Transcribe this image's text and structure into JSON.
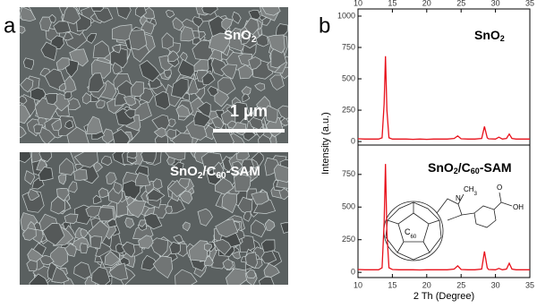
{
  "panel_a": {
    "label": "a",
    "scale_bar": "1 μm",
    "top_label": [
      "SnO",
      "2"
    ],
    "bottom_label": [
      "SnO",
      "2",
      "/C",
      "60",
      "-SAM"
    ]
  },
  "panel_b_label": "b",
  "ylabel": "Intensity (a.u.)",
  "xlabel": "2 Th (Degree)",
  "molecule": {
    "n": "N",
    "ch3": [
      "CH",
      "3"
    ],
    "o": "O",
    "oh": "OH",
    "c60": [
      "C",
      "60"
    ]
  },
  "chart_data": [
    {
      "type": "line",
      "label": [
        "SnO",
        "2"
      ],
      "color": "#e8101a",
      "x": [
        10,
        11,
        12,
        13,
        13.5,
        13.8,
        14,
        14.2,
        14.5,
        15,
        16,
        17,
        18,
        19,
        20,
        21,
        22,
        23,
        24,
        24.5,
        25,
        26,
        27,
        28,
        28.4,
        28.8,
        29,
        30,
        30.5,
        31,
        31.6,
        32,
        32.4,
        33,
        34,
        35
      ],
      "values": [
        22,
        20,
        20,
        20,
        30,
        300,
        680,
        250,
        30,
        20,
        20,
        20,
        18,
        20,
        18,
        20,
        20,
        20,
        25,
        45,
        22,
        20,
        20,
        25,
        120,
        30,
        22,
        20,
        35,
        20,
        25,
        60,
        25,
        20,
        20,
        20
      ],
      "xlim": [
        10,
        35
      ],
      "xticks": [
        10,
        15,
        20,
        25,
        30,
        35
      ],
      "ylim": [
        -28,
        1057
      ],
      "yticks": [
        0,
        250,
        500,
        750,
        1000
      ]
    },
    {
      "type": "line",
      "label": [
        "SnO",
        "2",
        "/C",
        "60",
        "-SAM"
      ],
      "color": "#e8101a",
      "x": [
        10,
        11,
        12,
        13,
        13.5,
        13.8,
        14,
        14.2,
        14.5,
        15,
        16,
        17,
        18,
        19,
        20,
        21,
        22,
        23,
        24,
        24.5,
        25,
        26,
        27,
        28,
        28.4,
        28.8,
        29,
        30,
        30.5,
        31,
        31.6,
        32,
        32.4,
        33,
        34,
        35
      ],
      "values": [
        22,
        20,
        20,
        20,
        35,
        380,
        830,
        300,
        35,
        22,
        20,
        20,
        20,
        18,
        20,
        20,
        20,
        20,
        25,
        50,
        22,
        20,
        20,
        25,
        160,
        35,
        22,
        20,
        30,
        20,
        25,
        70,
        25,
        20,
        20,
        20
      ],
      "xlim": [
        10,
        35
      ],
      "xticks": [
        10,
        15,
        20,
        25,
        30,
        35
      ],
      "ylim": [
        -40,
        975
      ],
      "yticks": [
        0,
        250,
        500,
        750
      ]
    }
  ]
}
